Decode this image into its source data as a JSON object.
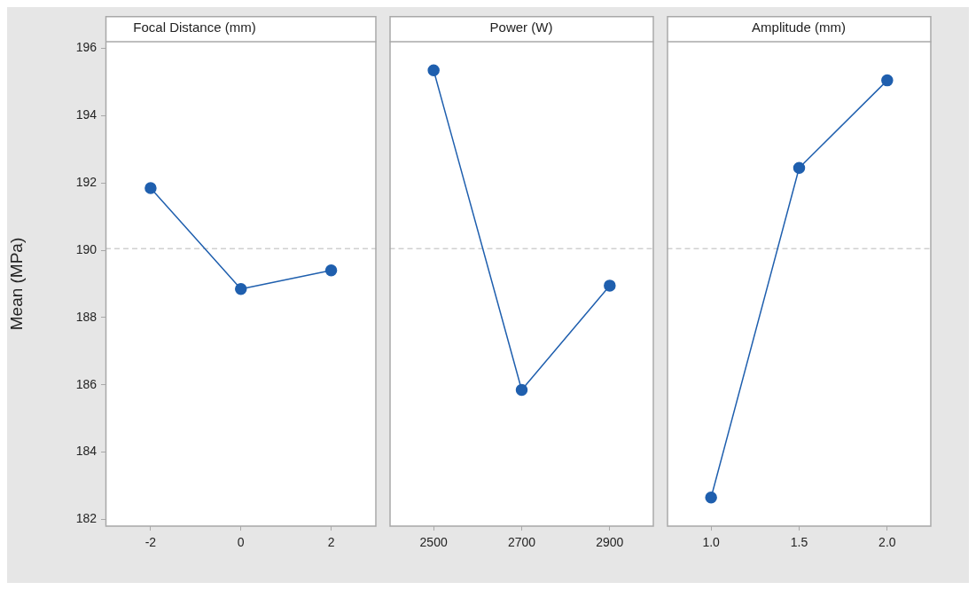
{
  "chart_data": [
    {
      "type": "line",
      "title": "Focal Distance (mm)",
      "ylabel": "Mean (MPa)",
      "categories": [
        "-2",
        "0",
        "2"
      ],
      "values": [
        191.85,
        188.85,
        189.4
      ],
      "color": "#1f5fae",
      "marker": "circle",
      "ylim": [
        181.8,
        196.2
      ],
      "yticks": [
        182,
        184,
        186,
        188,
        190,
        192,
        194,
        196
      ],
      "grid": false,
      "ref_lines": [
        {
          "axis": "y",
          "value": 190.05,
          "color": "#b8b8b8",
          "line_style": "dashed"
        }
      ]
    },
    {
      "type": "line",
      "title": "Power (W)",
      "categories": [
        "2500",
        "2700",
        "2900"
      ],
      "values": [
        195.35,
        185.85,
        188.95
      ],
      "color": "#1f5fae",
      "marker": "circle",
      "ylim": [
        181.8,
        196.2
      ],
      "tick_labels": "x",
      "grid": false,
      "ref_lines": [
        {
          "axis": "y",
          "value": 190.05,
          "color": "#b8b8b8",
          "line_style": "dashed"
        }
      ]
    },
    {
      "type": "line",
      "title": "Amplitude (mm)",
      "categories": [
        "1.0",
        "1.5",
        "2.0"
      ],
      "values": [
        182.65,
        192.45,
        195.05
      ],
      "color": "#1f5fae",
      "marker": "circle",
      "ylim": [
        181.8,
        196.2
      ],
      "tick_labels": "x",
      "grid": false,
      "ref_lines": [
        {
          "axis": "y",
          "value": 190.05,
          "color": "#b8b8b8",
          "line_style": "dashed"
        }
      ]
    }
  ]
}
